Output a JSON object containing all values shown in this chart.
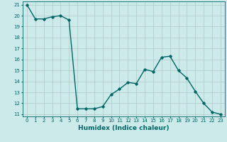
{
  "x": [
    0,
    1,
    2,
    3,
    4,
    5,
    6,
    7,
    8,
    9,
    10,
    11,
    12,
    13,
    14,
    15,
    16,
    17,
    18,
    19,
    20,
    21,
    22,
    23
  ],
  "y": [
    21.0,
    19.7,
    19.7,
    19.9,
    20.0,
    19.6,
    11.5,
    11.5,
    11.5,
    11.7,
    12.8,
    13.3,
    13.9,
    13.8,
    15.1,
    14.9,
    16.2,
    16.3,
    15.0,
    14.3,
    13.1,
    12.0,
    11.2,
    11.0
  ],
  "line_color": "#006666",
  "marker": "D",
  "markersize": 1.8,
  "linewidth": 1.0,
  "xlabel": "Humidex (Indice chaleur)",
  "xlim": [
    -0.5,
    23.5
  ],
  "ylim": [
    10.8,
    21.3
  ],
  "yticks": [
    11,
    12,
    13,
    14,
    15,
    16,
    17,
    18,
    19,
    20,
    21
  ],
  "xticks": [
    0,
    1,
    2,
    3,
    4,
    5,
    6,
    7,
    8,
    9,
    10,
    11,
    12,
    13,
    14,
    15,
    16,
    17,
    18,
    19,
    20,
    21,
    22,
    23
  ],
  "bg_color": "#cceaea",
  "grid_color": "#b0c8c8",
  "tick_fontsize": 5.0,
  "xlabel_fontsize": 6.5
}
